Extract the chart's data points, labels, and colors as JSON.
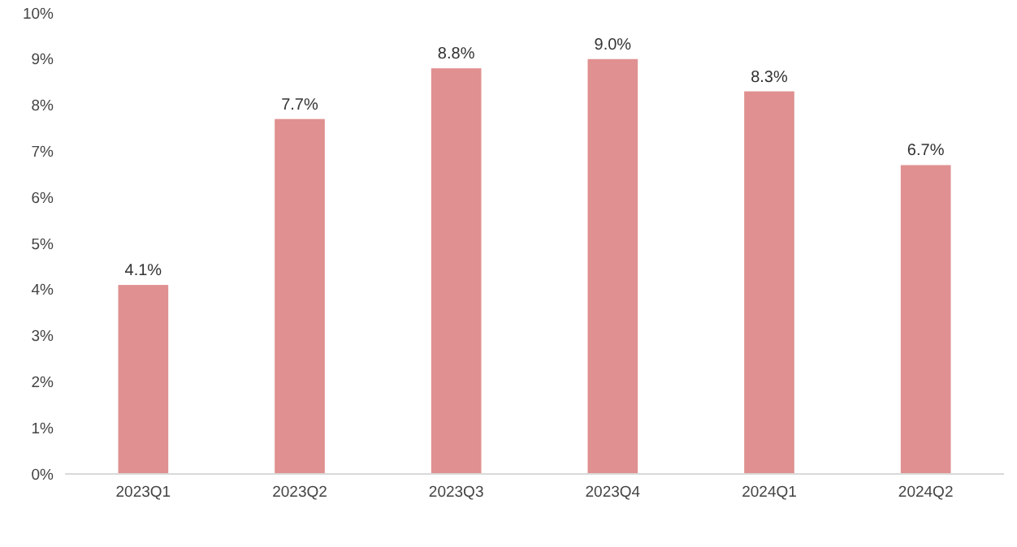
{
  "chart_data": {
    "type": "bar",
    "categories": [
      "2023Q1",
      "2023Q2",
      "2023Q3",
      "2023Q4",
      "2024Q1",
      "2024Q2"
    ],
    "values": [
      4.1,
      7.7,
      8.8,
      9.0,
      8.3,
      6.7
    ],
    "value_labels": [
      "4.1%",
      "7.7%",
      "8.8%",
      "9.0%",
      "8.3%",
      "6.7%"
    ],
    "color": "#e09090",
    "ylim": [
      0,
      10
    ],
    "yticks": [
      {
        "value": 0,
        "label": "0%"
      },
      {
        "value": 1,
        "label": "1%"
      },
      {
        "value": 2,
        "label": "2%"
      },
      {
        "value": 3,
        "label": "3%"
      },
      {
        "value": 4,
        "label": "4%"
      },
      {
        "value": 5,
        "label": "5%"
      },
      {
        "value": 6,
        "label": "6%"
      },
      {
        "value": 7,
        "label": "7%"
      },
      {
        "value": 8,
        "label": "8%"
      },
      {
        "value": 9,
        "label": "9%"
      },
      {
        "value": 10,
        "label": "10%"
      }
    ],
    "grid": false
  }
}
